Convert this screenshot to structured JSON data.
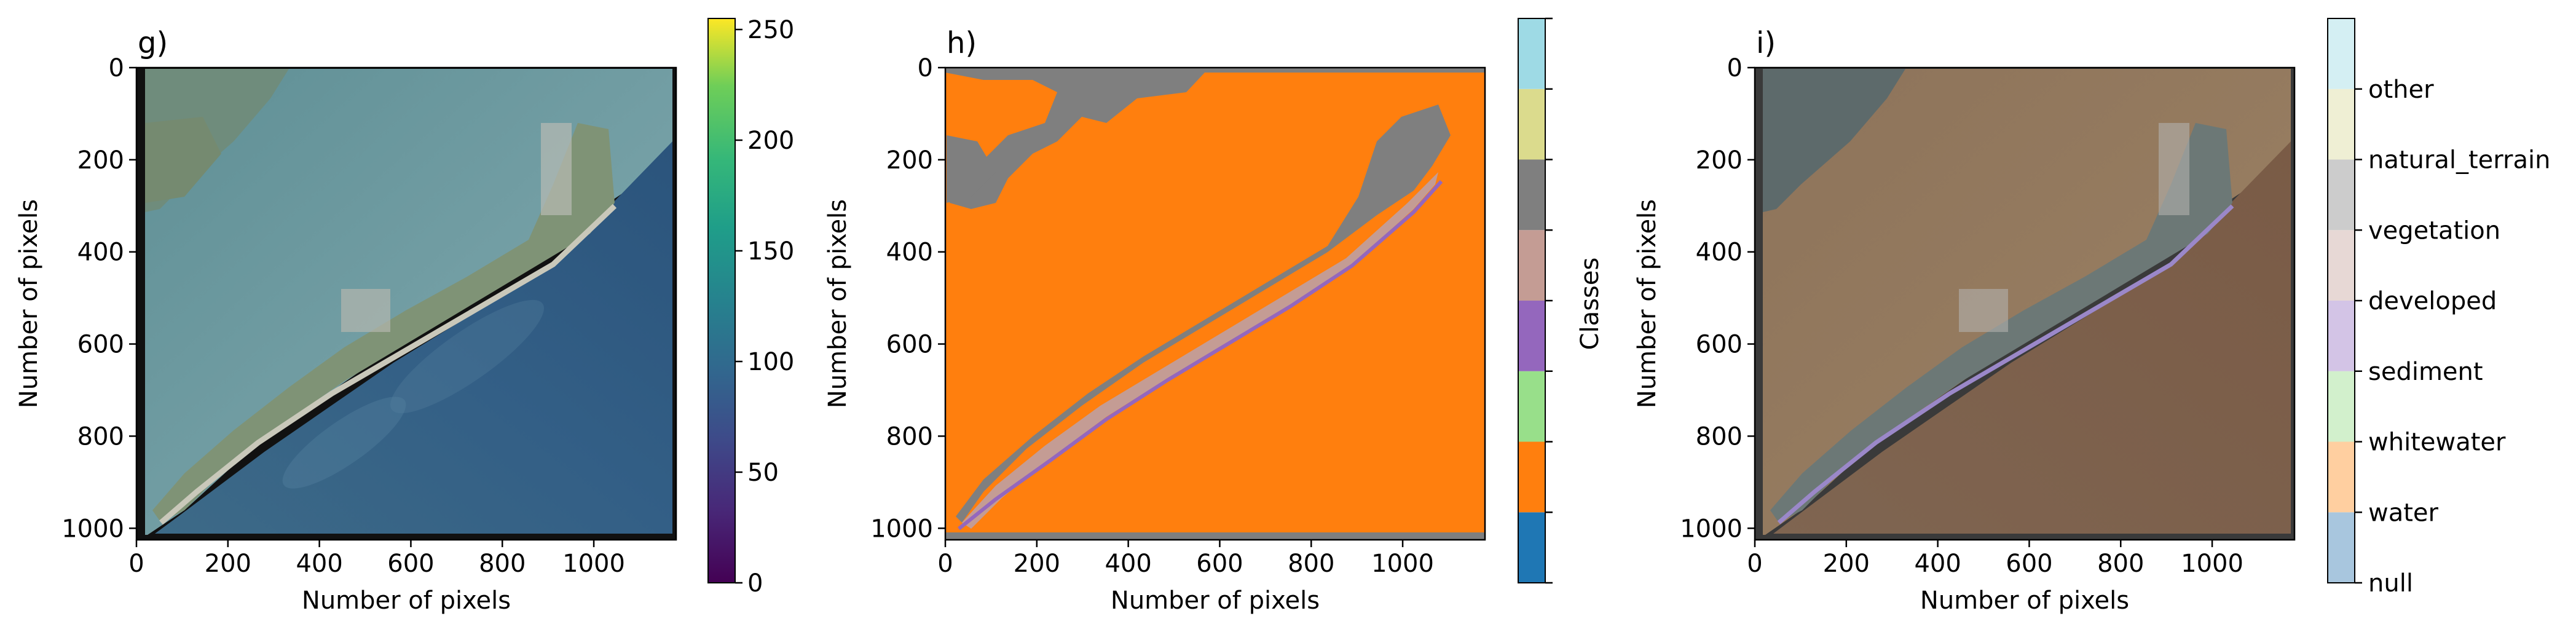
{
  "chart_data": [
    {
      "type": "heatmap",
      "panel_label": "g)",
      "description_kind": "rgb-image",
      "xlabel": "Number of pixels",
      "ylabel": "Number of pixels",
      "xlim": [
        0,
        1180
      ],
      "ylim": [
        1025,
        0
      ],
      "xticks": [
        "0",
        "200",
        "400",
        "600",
        "800",
        "1000"
      ],
      "yticks": [
        "0",
        "200",
        "400",
        "600",
        "800",
        "1000"
      ],
      "colorbar": {
        "colormap": "viridis",
        "range": [
          0,
          255
        ],
        "ticks": [
          "0",
          "50",
          "100",
          "150",
          "200",
          "250"
        ]
      }
    },
    {
      "type": "heatmap",
      "panel_label": "h)",
      "description_kind": "classification-map",
      "xlabel": "Number of pixels",
      "ylabel": "Number of pixels",
      "xlim": [
        0,
        1180
      ],
      "ylim": [
        1025,
        0
      ],
      "xticks": [
        "0",
        "200",
        "400",
        "600",
        "800",
        "1000"
      ],
      "yticks": [
        "0",
        "200",
        "400",
        "600",
        "800",
        "1000"
      ],
      "colorbar": {
        "label": "Classes",
        "colors": [
          "#1f77b4",
          "#ff7f0e",
          "#98df8a",
          "#9467bd",
          "#c49c94",
          "#7f7f7f",
          "#dbdb8d",
          "#9edae5"
        ]
      }
    },
    {
      "type": "heatmap",
      "panel_label": "i)",
      "description_kind": "overlay",
      "xlabel": "Number of pixels",
      "ylabel": "Number of pixels",
      "xlim": [
        0,
        1180
      ],
      "ylim": [
        1025,
        0
      ],
      "xticks": [
        "0",
        "200",
        "400",
        "600",
        "800",
        "1000"
      ],
      "yticks": [
        "0",
        "200",
        "400",
        "600",
        "800",
        "1000"
      ],
      "colorbar": {
        "classes": [
          "null",
          "water",
          "whitewater",
          "sediment",
          "developed",
          "vegetation",
          "natural_terrain",
          "other"
        ],
        "colors": [
          "#a8c6de",
          "#ffcfa0",
          "#d2f0cc",
          "#d3c4e6",
          "#e7d8d5",
          "#cccccc",
          "#efefd4",
          "#d4eff3"
        ]
      }
    }
  ],
  "colors": {
    "water_deep": "#2f5a80",
    "water_shallow": "#6e98a4",
    "land": "#7c8f78",
    "sand": "#c8c6b8",
    "overlay_water": "#8a6d55",
    "overlay_bay": "#9a7e5e"
  }
}
